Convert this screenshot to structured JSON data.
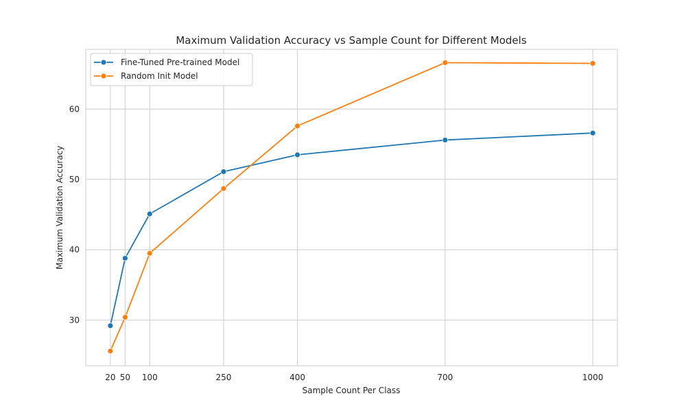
{
  "chart_data": {
    "type": "line",
    "title": "Maximum Validation Accuracy vs Sample Count for Different Models",
    "xlabel": "Sample Count Per Class",
    "ylabel": "Maximum Validation Accuracy",
    "x": [
      20,
      50,
      100,
      250,
      400,
      700,
      1000
    ],
    "xticks": [
      20,
      50,
      100,
      250,
      400,
      700,
      1000
    ],
    "yticks": [
      30,
      40,
      50,
      60
    ],
    "xlim": [
      -30,
      1050
    ],
    "ylim": [
      23.5,
      68.5
    ],
    "grid": true,
    "legend_position": "top-left",
    "series": [
      {
        "name": "Fine-Tuned Pre-trained Model",
        "color": "#1f77b4",
        "values": [
          29.2,
          38.8,
          45.1,
          51.1,
          53.5,
          55.6,
          56.6
        ]
      },
      {
        "name": "Random Init Model",
        "color": "#ff7f0e",
        "values": [
          25.6,
          30.4,
          39.5,
          48.7,
          57.6,
          66.6,
          66.5
        ]
      }
    ]
  }
}
